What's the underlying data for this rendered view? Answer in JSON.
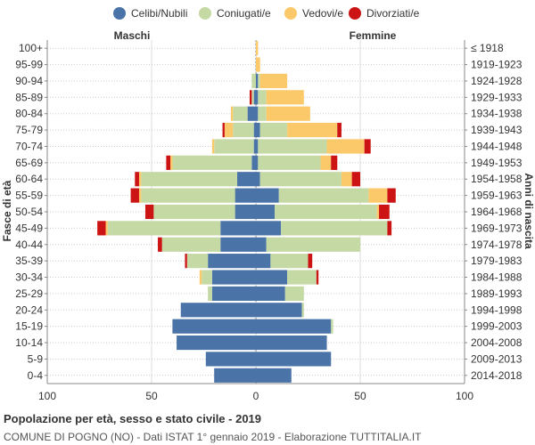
{
  "chart_data": {
    "type": "bar",
    "orientation": "horizontal-population-pyramid",
    "title": "Popolazione per età, sesso e stato civile - 2019",
    "subtitle": "COMUNE DI POGNO (NO) - Dati ISTAT 1° gennaio 2019 - Elaborazione TUTTITALIA.IT",
    "left_header": "Maschi",
    "right_header": "Femmine",
    "ylabel_left": "Fasce di età",
    "ylabel_right": "Anni di nascita",
    "xlim": [
      -100,
      100
    ],
    "x_ticks": [
      -100,
      -50,
      0,
      50,
      100
    ],
    "x_tick_labels": [
      "100",
      "50",
      "0",
      "50",
      "100"
    ],
    "legend": [
      {
        "name": "Celibi/Nubili",
        "color": "#4a73a8"
      },
      {
        "name": "Coniugati/e",
        "color": "#c5d9a5"
      },
      {
        "name": "Vedovi/e",
        "color": "#fcc96a"
      },
      {
        "name": "Divorziati/e",
        "color": "#cc1414"
      }
    ],
    "age_groups": [
      "100+",
      "95-99",
      "90-94",
      "85-89",
      "80-84",
      "75-79",
      "70-74",
      "65-69",
      "60-64",
      "55-59",
      "50-54",
      "45-49",
      "40-44",
      "35-39",
      "30-34",
      "25-29",
      "20-24",
      "15-19",
      "10-14",
      "5-9",
      "0-4"
    ],
    "birth_years": [
      "≤ 1918",
      "1919-1923",
      "1924-1928",
      "1929-1933",
      "1934-1938",
      "1939-1943",
      "1944-1948",
      "1949-1953",
      "1954-1958",
      "1959-1963",
      "1964-1968",
      "1969-1973",
      "1974-1978",
      "1979-1983",
      "1984-1988",
      "1989-1993",
      "1994-1998",
      "1999-2003",
      "2004-2008",
      "2009-2013",
      "2014-2018"
    ],
    "males": {
      "Celibi/Nubili": [
        0,
        0,
        0,
        1,
        4,
        1,
        1,
        2,
        9,
        10,
        10,
        17,
        17,
        23,
        21,
        21,
        36,
        40,
        38,
        24,
        20
      ],
      "Coniugati/e": [
        0,
        0,
        2,
        1,
        7,
        10,
        19,
        38,
        46,
        45,
        39,
        54,
        28,
        10,
        5,
        2,
        0,
        0,
        0,
        0,
        0
      ],
      "Vedovi/e": [
        0,
        0,
        0,
        0,
        1,
        4,
        1,
        1,
        1,
        1,
        0,
        1,
        0,
        0,
        1,
        0,
        0,
        0,
        0,
        0,
        0
      ],
      "Divorziati/e": [
        0,
        0,
        0,
        1,
        0,
        1,
        0,
        2,
        2,
        4,
        4,
        4,
        2,
        1,
        0,
        0,
        0,
        0,
        0,
        0,
        0
      ]
    },
    "females": {
      "Celibi/Nubili": [
        0,
        0,
        1,
        1,
        1,
        2,
        1,
        1,
        2,
        11,
        9,
        12,
        5,
        7,
        15,
        14,
        22,
        36,
        34,
        36,
        17
      ],
      "Coniugati/e": [
        0,
        0,
        1,
        4,
        4,
        13,
        33,
        30,
        39,
        43,
        49,
        51,
        45,
        18,
        14,
        9,
        1,
        1,
        0,
        0,
        0
      ],
      "Vedovi/e": [
        1,
        2,
        13,
        18,
        21,
        24,
        18,
        5,
        5,
        9,
        1,
        0,
        0,
        0,
        0,
        0,
        0,
        0,
        0,
        0,
        0
      ],
      "Divorziati/e": [
        0,
        0,
        0,
        0,
        0,
        2,
        3,
        3,
        4,
        4,
        5,
        2,
        0,
        2,
        1,
        0,
        0,
        0,
        0,
        0,
        0
      ]
    }
  }
}
